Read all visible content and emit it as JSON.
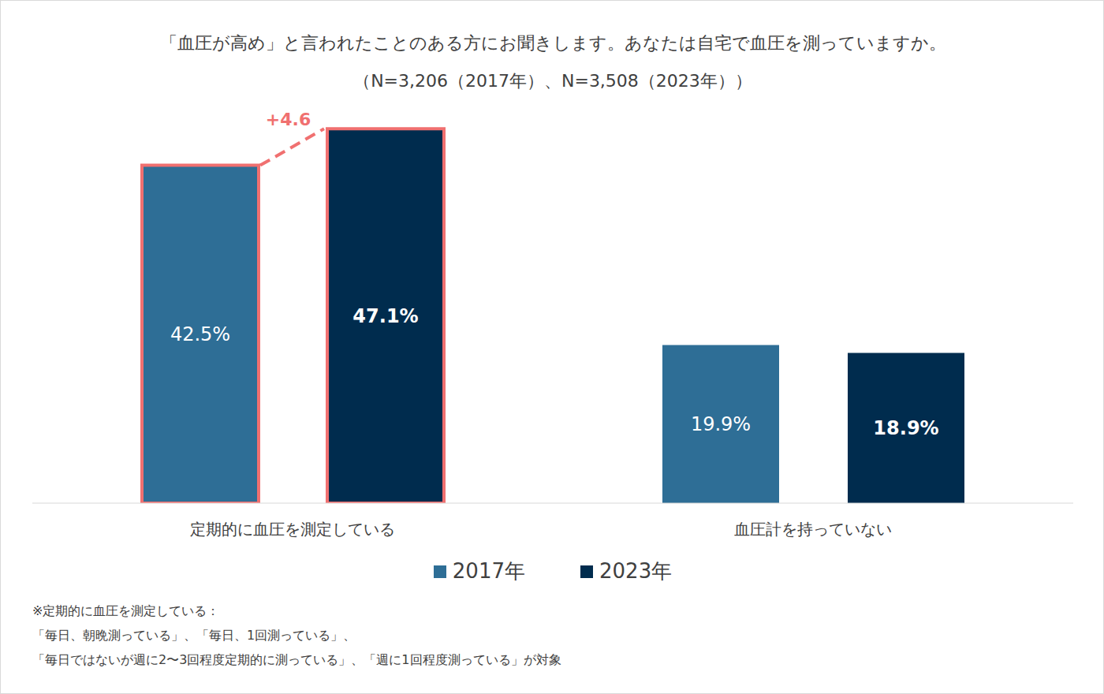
{
  "chart_data": {
    "type": "bar",
    "title": "「血圧が高め」と言われたことのある方にお聞きします。あなたは自宅で血圧を測っていますか。",
    "subtitle": "（N=3,206（2017年）、N=3,508（2023年））",
    "categories": [
      "定期的に血圧を測定している",
      "血圧計を持っていない"
    ],
    "series": [
      {
        "name": "2017年",
        "color": "#2e6e96",
        "values": [
          42.5,
          19.9
        ],
        "value_labels": [
          "42.5%",
          "19.9%"
        ]
      },
      {
        "name": "2023年",
        "color": "#002c4e",
        "values": [
          47.1,
          18.9
        ],
        "value_labels": [
          "47.1%",
          "18.9%"
        ]
      }
    ],
    "ylim": [
      0,
      50
    ],
    "data_labels": true,
    "tick_labels": "x",
    "grid": false,
    "legend": "bottom",
    "annotation": {
      "text": "+4.6",
      "category": "定期的に血圧を測定している",
      "color": "#f07070"
    },
    "footnote": [
      "※定期的に血圧を測定している：",
      "「毎日、朝晩測っている」、「毎日、1回測っている」、",
      "「毎日ではないが週に2〜3回程度定期的に測っている」、「週に1回程度測っている」が対象"
    ]
  }
}
